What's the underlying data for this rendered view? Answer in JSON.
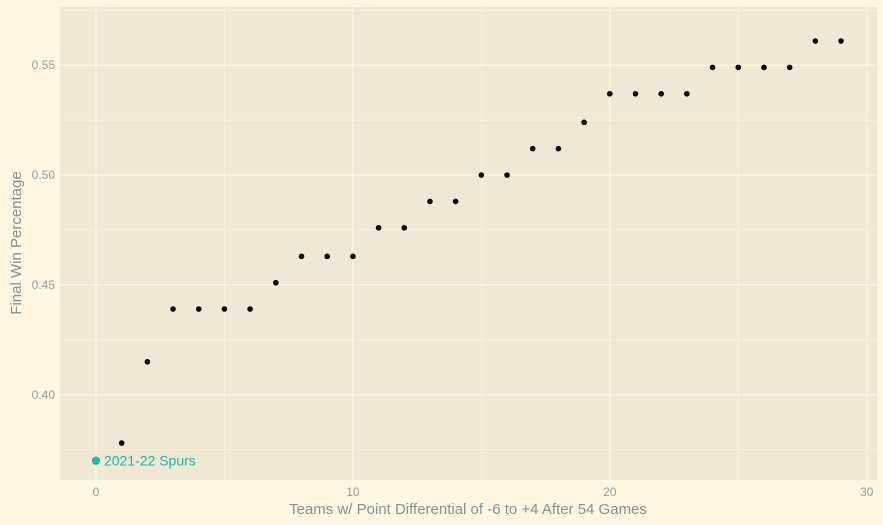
{
  "chart_data": {
    "type": "scatter",
    "title": "",
    "xlabel": "Teams w/ Point Differential of -6 to +4 After 54 Games",
    "ylabel": "Final Win Percentage",
    "xlim": [
      -1.4,
      30.4
    ],
    "ylim": [
      0.3612,
      0.5765
    ],
    "x_ticks": [
      0,
      10,
      20,
      30
    ],
    "x_tick_labels": [
      "0",
      "10",
      "20",
      "30"
    ],
    "y_ticks": [
      0.4,
      0.45,
      0.5,
      0.55
    ],
    "y_tick_labels": [
      "0.40",
      "0.45",
      "0.50",
      "0.55"
    ],
    "grid": true,
    "points": [
      {
        "x": 1,
        "y": 0.378
      },
      {
        "x": 2,
        "y": 0.415
      },
      {
        "x": 3,
        "y": 0.439
      },
      {
        "x": 4,
        "y": 0.439
      },
      {
        "x": 5,
        "y": 0.439
      },
      {
        "x": 6,
        "y": 0.439
      },
      {
        "x": 7,
        "y": 0.451
      },
      {
        "x": 8,
        "y": 0.463
      },
      {
        "x": 9,
        "y": 0.463
      },
      {
        "x": 10,
        "y": 0.463
      },
      {
        "x": 11,
        "y": 0.476
      },
      {
        "x": 12,
        "y": 0.476
      },
      {
        "x": 13,
        "y": 0.488
      },
      {
        "x": 14,
        "y": 0.488
      },
      {
        "x": 15,
        "y": 0.5
      },
      {
        "x": 16,
        "y": 0.5
      },
      {
        "x": 17,
        "y": 0.512
      },
      {
        "x": 18,
        "y": 0.512
      },
      {
        "x": 19,
        "y": 0.524
      },
      {
        "x": 20,
        "y": 0.537
      },
      {
        "x": 21,
        "y": 0.537
      },
      {
        "x": 22,
        "y": 0.537
      },
      {
        "x": 23,
        "y": 0.537
      },
      {
        "x": 24,
        "y": 0.549
      },
      {
        "x": 25,
        "y": 0.549
      },
      {
        "x": 26,
        "y": 0.549
      },
      {
        "x": 27,
        "y": 0.549
      },
      {
        "x": 28,
        "y": 0.561
      },
      {
        "x": 29,
        "y": 0.561
      }
    ],
    "highlight": {
      "x": 0,
      "y": 0.37,
      "label": "2021-22 Spurs",
      "color": "#1fb5a8"
    },
    "colors": {
      "background": "#fdf6e3",
      "panel": "#eee8d5",
      "grid": "#fdf6e3",
      "point": "#000000",
      "tick_text": "#93a1a1",
      "axis_title": "#839496"
    }
  }
}
